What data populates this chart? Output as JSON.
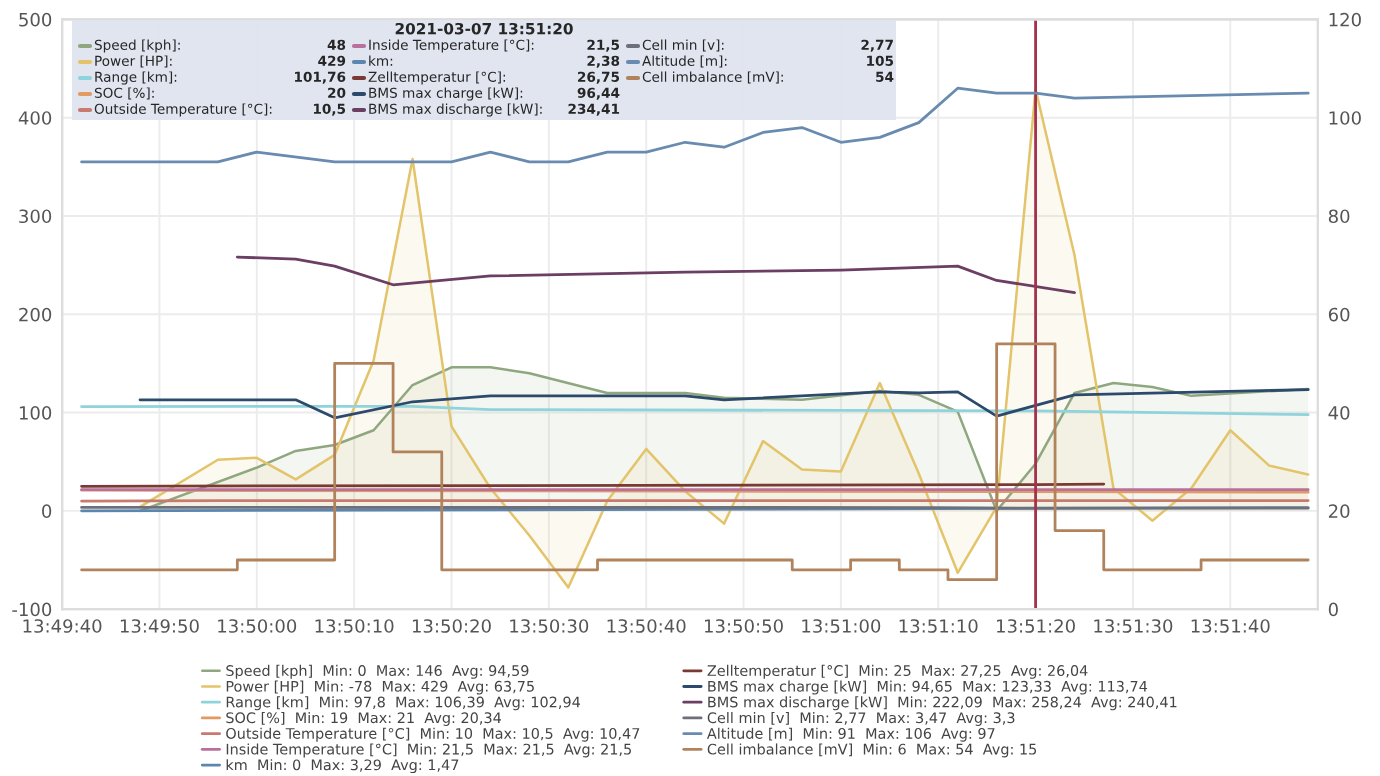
{
  "chart_data": {
    "type": "line",
    "xlim": [
      "2021-03-07T13:49:40",
      "2021-03-07T13:51:49"
    ],
    "xticks": [
      {
        "value": "2021-03-07T13:49:40",
        "label": "13:49:40"
      },
      {
        "value": "2021-03-07T13:49:50",
        "label": "13:49:50"
      },
      {
        "value": "2021-03-07T13:50:00",
        "label": "13:50:00"
      },
      {
        "value": "2021-03-07T13:50:10",
        "label": "13:50:10"
      },
      {
        "value": "2021-03-07T13:50:20",
        "label": "13:50:20"
      },
      {
        "value": "2021-03-07T13:50:30",
        "label": "13:50:30"
      },
      {
        "value": "2021-03-07T13:50:40",
        "label": "13:50:40"
      },
      {
        "value": "2021-03-07T13:50:50",
        "label": "13:50:50"
      },
      {
        "value": "2021-03-07T13:51:00",
        "label": "13:51:00"
      },
      {
        "value": "2021-03-07T13:51:10",
        "label": "13:51:10"
      },
      {
        "value": "2021-03-07T13:51:20",
        "label": "13:51:20"
      },
      {
        "value": "2021-03-07T13:51:30",
        "label": "13:51:30"
      },
      {
        "value": "2021-03-07T13:51:40",
        "label": "13:51:40"
      }
    ],
    "ylim": [
      -100,
      500
    ],
    "yticks": [
      -100,
      0,
      100,
      200,
      300,
      400,
      500
    ],
    "y2lim": [
      0,
      120
    ],
    "y2ticks": [
      0,
      20,
      40,
      60,
      80,
      100,
      120
    ],
    "grid": true,
    "legend": "bottom",
    "ref_lines": [
      {
        "axis": "x",
        "value": "2021-03-07T13:51:20",
        "color": "#a3304c"
      }
    ],
    "series": [
      {
        "name": "Speed [kph]  Min: 0  Max: 146  Avg: 94,59",
        "type": "area",
        "color": "#8fa77f",
        "x": [
          "2021-03-07T13:49:48",
          "2021-03-07T13:50:00",
          "2021-03-07T13:50:04",
          "2021-03-07T13:50:08",
          "2021-03-07T13:50:12",
          "2021-03-07T13:50:16",
          "2021-03-07T13:50:20",
          "2021-03-07T13:50:24",
          "2021-03-07T13:50:28",
          "2021-03-07T13:50:36",
          "2021-03-07T13:50:44",
          "2021-03-07T13:50:48",
          "2021-03-07T13:50:56",
          "2021-03-07T13:51:04",
          "2021-03-07T13:51:08",
          "2021-03-07T13:51:12",
          "2021-03-07T13:51:16",
          "2021-03-07T13:51:20",
          "2021-03-07T13:51:24",
          "2021-03-07T13:51:28",
          "2021-03-07T13:51:32",
          "2021-03-07T13:51:36",
          "2021-03-07T13:51:48"
        ],
        "values": [
          0,
          44,
          61,
          67,
          82,
          128,
          146,
          146,
          140,
          120,
          120,
          115,
          113,
          122,
          118,
          101,
          0,
          48,
          120,
          130,
          126,
          117,
          124
        ]
      },
      {
        "name": "Power [HP]  Min: -78  Max: 429  Avg: 63,75",
        "type": "area",
        "color": "#e3c46a",
        "x": [
          "2021-03-07T13:49:48",
          "2021-03-07T13:49:56",
          "2021-03-07T13:50:00",
          "2021-03-07T13:50:04",
          "2021-03-07T13:50:08",
          "2021-03-07T13:50:12",
          "2021-03-07T13:50:16",
          "2021-03-07T13:50:20",
          "2021-03-07T13:50:24",
          "2021-03-07T13:50:28",
          "2021-03-07T13:50:32",
          "2021-03-07T13:50:36",
          "2021-03-07T13:50:40",
          "2021-03-07T13:50:44",
          "2021-03-07T13:50:48",
          "2021-03-07T13:50:52",
          "2021-03-07T13:50:56",
          "2021-03-07T13:51:00",
          "2021-03-07T13:51:04",
          "2021-03-07T13:51:08",
          "2021-03-07T13:51:12",
          "2021-03-07T13:51:16",
          "2021-03-07T13:51:20",
          "2021-03-07T13:51:24",
          "2021-03-07T13:51:28",
          "2021-03-07T13:51:32",
          "2021-03-07T13:51:36",
          "2021-03-07T13:51:40",
          "2021-03-07T13:51:44",
          "2021-03-07T13:51:48"
        ],
        "values": [
          4,
          52,
          54,
          32,
          57,
          153,
          358,
          86,
          23,
          -25,
          -78,
          10,
          63,
          20,
          -13,
          71,
          42,
          40,
          130,
          38,
          -63,
          4,
          429,
          260,
          23,
          -10,
          23,
          82,
          46,
          37
        ]
      },
      {
        "name": "Range [km]  Min: 97,8  Max: 106,39  Avg: 102,94",
        "color": "#8fd3dc",
        "x": [
          "2021-03-07T13:49:42",
          "2021-03-07T13:50:16",
          "2021-03-07T13:50:24",
          "2021-03-07T13:51:20",
          "2021-03-07T13:51:48"
        ],
        "values": [
          106,
          106.39,
          103,
          101.76,
          97.8
        ]
      },
      {
        "name": "SOC [%]  Min: 19  Max: 21  Avg: 20,34",
        "color": "#e09a62",
        "x": [
          "2021-03-07T13:49:42",
          "2021-03-07T13:50:44",
          "2021-03-07T13:51:48"
        ],
        "values": [
          21,
          20,
          19
        ]
      },
      {
        "name": "Outside Temperature [°C]  Min: 10  Max: 10,5  Avg: 10,47",
        "color": "#c87a6e",
        "x": [
          "2021-03-07T13:49:42",
          "2021-03-07T13:49:56",
          "2021-03-07T13:51:48"
        ],
        "values": [
          10,
          10.5,
          10.5
        ]
      },
      {
        "name": "Inside Temperature [°C]  Min: 21,5  Max: 21,5  Avg: 21,5",
        "color": "#b8709f",
        "x": [
          "2021-03-07T13:49:42",
          "2021-03-07T13:51:48"
        ],
        "values": [
          21.5,
          21.5
        ]
      },
      {
        "name": "km  Min: 0  Max: 3,29  Avg: 1,47",
        "color": "#5b86b0",
        "x": [
          "2021-03-07T13:49:42",
          "2021-03-07T13:51:48"
        ],
        "values": [
          0,
          3.29
        ]
      },
      {
        "name": "Zelltemperatur [°C]  Min: 25  Max: 27,25  Avg: 26,04",
        "color": "#7a3a34",
        "x": [
          "2021-03-07T13:49:42",
          "2021-03-07T13:51:20",
          "2021-03-07T13:51:27"
        ],
        "values": [
          25,
          26.75,
          27.25
        ]
      },
      {
        "name": "BMS max charge [kW]  Min: 94,65  Max: 123,33  Avg: 113,74",
        "color": "#2c4a6b",
        "x": [
          "2021-03-07T13:49:48",
          "2021-03-07T13:50:04",
          "2021-03-07T13:50:08",
          "2021-03-07T13:50:16",
          "2021-03-07T13:50:24",
          "2021-03-07T13:50:44",
          "2021-03-07T13:50:48",
          "2021-03-07T13:51:04",
          "2021-03-07T13:51:08",
          "2021-03-07T13:51:12",
          "2021-03-07T13:51:16",
          "2021-03-07T13:51:24",
          "2021-03-07T13:51:48"
        ],
        "values": [
          113,
          113,
          94.65,
          111,
          117,
          117,
          113,
          121,
          120,
          121,
          96.44,
          118,
          123.33
        ]
      },
      {
        "name": "BMS max discharge [kW]  Min: 222,09  Max: 258,24  Avg: 240,41",
        "color": "#6b3e63",
        "x": [
          "2021-03-07T13:49:58",
          "2021-03-07T13:50:04",
          "2021-03-07T13:50:08",
          "2021-03-07T13:50:14",
          "2021-03-07T13:50:24",
          "2021-03-07T13:50:44",
          "2021-03-07T13:51:00",
          "2021-03-07T13:51:12",
          "2021-03-07T13:51:16",
          "2021-03-07T13:51:24"
        ],
        "values": [
          258.24,
          256,
          249,
          230,
          239,
          243,
          245,
          249,
          234.41,
          222.09
        ]
      },
      {
        "name": "Cell min [v]  Min: 2,77  Max: 3,47  Avg: 3,3",
        "color": "#6f6f7a",
        "x": [
          "2021-03-07T13:49:42",
          "2021-03-07T13:51:10",
          "2021-03-07T13:51:20",
          "2021-03-07T13:51:48"
        ],
        "values": [
          3.47,
          3.4,
          2.77,
          2.77
        ]
      },
      {
        "name": "Altitude [m]  Min: 91  Max: 106  Avg: 97",
        "axis": "y2",
        "color": "#6a8bb0",
        "x": [
          "2021-03-07T13:49:42",
          "2021-03-07T13:49:56",
          "2021-03-07T13:50:00",
          "2021-03-07T13:50:08",
          "2021-03-07T13:50:20",
          "2021-03-07T13:50:24",
          "2021-03-07T13:50:28",
          "2021-03-07T13:50:32",
          "2021-03-07T13:50:36",
          "2021-03-07T13:50:40",
          "2021-03-07T13:50:44",
          "2021-03-07T13:50:48",
          "2021-03-07T13:50:52",
          "2021-03-07T13:50:56",
          "2021-03-07T13:51:00",
          "2021-03-07T13:51:04",
          "2021-03-07T13:51:08",
          "2021-03-07T13:51:12",
          "2021-03-07T13:51:16",
          "2021-03-07T13:51:20",
          "2021-03-07T13:51:24",
          "2021-03-07T13:51:48"
        ],
        "values": [
          91,
          91,
          93,
          91,
          91,
          93,
          91,
          91,
          93,
          93,
          95,
          94,
          97,
          98,
          95,
          96,
          99,
          106,
          105,
          105,
          104,
          105
        ]
      },
      {
        "name": "Cell imbalance [mV]  Min: 6  Max: 54  Avg: 15",
        "type": "step",
        "axis": "y2",
        "color": "#b0835c",
        "x": [
          "2021-03-07T13:49:42",
          "2021-03-07T13:49:58",
          "2021-03-07T13:50:08",
          "2021-03-07T13:50:14",
          "2021-03-07T13:50:19",
          "2021-03-07T13:50:35",
          "2021-03-07T13:50:55",
          "2021-03-07T13:51:01",
          "2021-03-07T13:51:06",
          "2021-03-07T13:51:11",
          "2021-03-07T13:51:16",
          "2021-03-07T13:51:22",
          "2021-03-07T13:51:27",
          "2021-03-07T13:51:37",
          "2021-03-07T13:51:48"
        ],
        "values": [
          8,
          10,
          50,
          32,
          8,
          10,
          8,
          10,
          8,
          6,
          54,
          16,
          8,
          10,
          10
        ]
      }
    ],
    "annotations": [
      "2021-03-07 13:51:20",
      "Speed [kph]:",
      "48",
      "Power [HP]:",
      "429",
      "Range [km]:",
      "101,76",
      "SOC [%]:",
      "20",
      "Outside Temperature [°C]:",
      "10,5",
      "Inside Temperature [°C]:",
      "21,5",
      "km:",
      "2,38",
      "Zelltemperatur [°C]:",
      "26,75",
      "BMS max charge [kW]:",
      "96,44",
      "BMS max discharge [kW]:",
      "234,41",
      "Cell min [v]:",
      "2,77",
      "Altitude [m]:",
      "105",
      "Cell imbalance [mV]:",
      "54"
    ]
  }
}
